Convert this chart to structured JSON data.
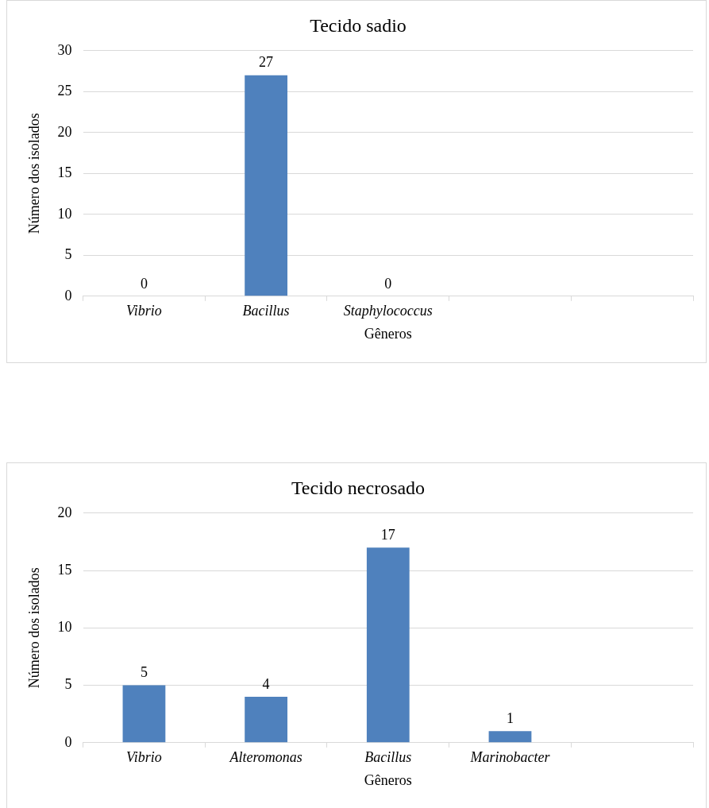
{
  "chart_data": [
    {
      "type": "bar",
      "title": "Tecido sadio",
      "xlabel": "Gêneros",
      "ylabel": "Número dos isolados",
      "categories": [
        "Vibrio",
        "Bacillus",
        "Staphylococcus",
        null,
        null
      ],
      "values": [
        0,
        27,
        0,
        null,
        null
      ],
      "color": "#4f81bd",
      "ylim": [
        0,
        30
      ],
      "yticks": [
        0,
        5,
        10,
        15,
        20,
        25,
        30
      ],
      "grid": "y",
      "legend": false,
      "data_labels": true
    },
    {
      "type": "bar",
      "title": "Tecido necrosado",
      "xlabel": "Gêneros",
      "ylabel": "Número dos isolados",
      "categories": [
        "Vibrio",
        "Alteromonas",
        "Bacillus",
        "Marinobacter",
        null
      ],
      "values": [
        5,
        4,
        17,
        1,
        null
      ],
      "color": "#4f81bd",
      "ylim": [
        0,
        20
      ],
      "yticks": [
        0,
        5,
        10,
        15,
        20
      ],
      "grid": "y",
      "legend": false,
      "data_labels": true
    }
  ]
}
